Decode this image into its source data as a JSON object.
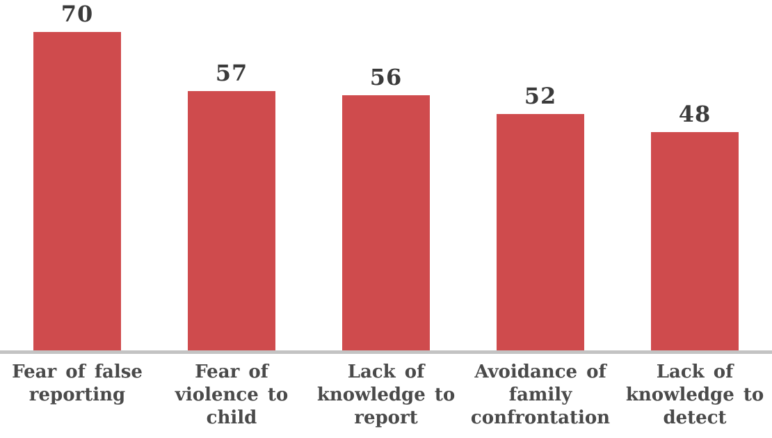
{
  "chart_data": {
    "type": "bar",
    "title": "",
    "xlabel": "",
    "ylabel": "",
    "categories": [
      "Fear of false reporting",
      "Fear of violence to child",
      "Lack of knowledge to report",
      "Avoidance of family confrontation",
      "Lack of knowledge to detect"
    ],
    "category_lines": [
      [
        "Fear of false",
        "reporting"
      ],
      [
        "Fear of",
        "violence to",
        "child"
      ],
      [
        "Lack of",
        "knowledge to",
        "report"
      ],
      [
        "Avoidance of",
        "family",
        "confrontation"
      ],
      [
        "Lack of",
        "knowledge to",
        "detect"
      ]
    ],
    "values": [
      70,
      57,
      56,
      52,
      48
    ],
    "value_labels": [
      "70",
      "57",
      "56",
      "52",
      "48"
    ],
    "ylim": [
      0,
      77
    ],
    "grid": false,
    "legend": false,
    "colors": {
      "bar": "#CF4B4D",
      "axis_line": "#C3C3C3",
      "value_label": "#3B3B3B",
      "category_label": "#4A4A4A"
    }
  }
}
